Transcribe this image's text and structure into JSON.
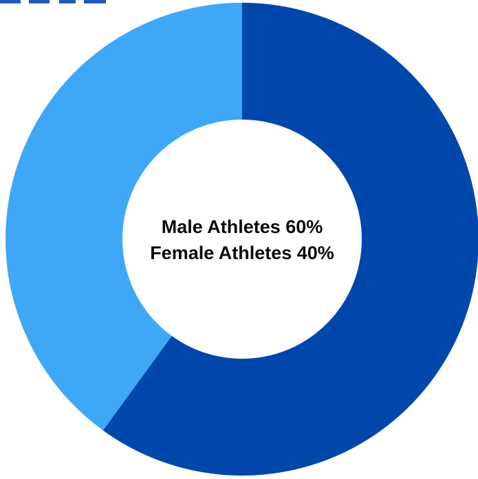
{
  "chart_data": {
    "type": "pie",
    "variant": "donut",
    "title": "",
    "categories": [
      "Male Athletes",
      "Female Athletes"
    ],
    "values": [
      60,
      40
    ],
    "unit": "%",
    "colors": [
      "#0047ab",
      "#3ea8f7"
    ],
    "start_angle_deg": 0,
    "direction": "clockwise",
    "center_labels": [
      "Male Athletes 60%",
      "Female Athletes 40%"
    ],
    "legend": "none"
  },
  "colors": {
    "background": "#ffffff",
    "center_text": "#0b0b0b",
    "top_cutoff_heading": "#1f5bb5"
  }
}
